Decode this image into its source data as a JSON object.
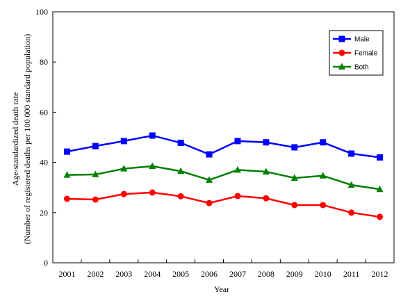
{
  "chart_data": {
    "type": "line",
    "title": "",
    "xlabel": "Year",
    "ylabel": "Age-standardized death rate",
    "ylabel_sub": "(Number of registered deaths per 100 000 standard population)",
    "categories": [
      "2001",
      "2002",
      "2003",
      "2004",
      "2005",
      "2006",
      "2007",
      "2008",
      "2009",
      "2010",
      "2011",
      "2012"
    ],
    "ylim": [
      0,
      100
    ],
    "yticks": [
      0,
      20,
      40,
      60,
      80,
      100
    ],
    "grid": false,
    "legend_position": "top-right",
    "series": [
      {
        "name": "Male",
        "color": "#0000ff",
        "marker": "square",
        "values": [
          44.3,
          46.5,
          48.5,
          50.7,
          47.8,
          43.2,
          48.5,
          48.0,
          46.0,
          48.0,
          43.5,
          42.0
        ]
      },
      {
        "name": "Female",
        "color": "#ff0000",
        "marker": "circle",
        "values": [
          25.5,
          25.2,
          27.4,
          28.0,
          26.5,
          23.8,
          26.6,
          25.7,
          23.0,
          23.0,
          20.0,
          18.3
        ]
      },
      {
        "name": "Both",
        "color": "#008000",
        "marker": "triangle",
        "values": [
          35.0,
          35.2,
          37.5,
          38.5,
          36.5,
          33.0,
          37.0,
          36.3,
          33.8,
          34.7,
          31.0,
          29.3
        ]
      }
    ]
  }
}
